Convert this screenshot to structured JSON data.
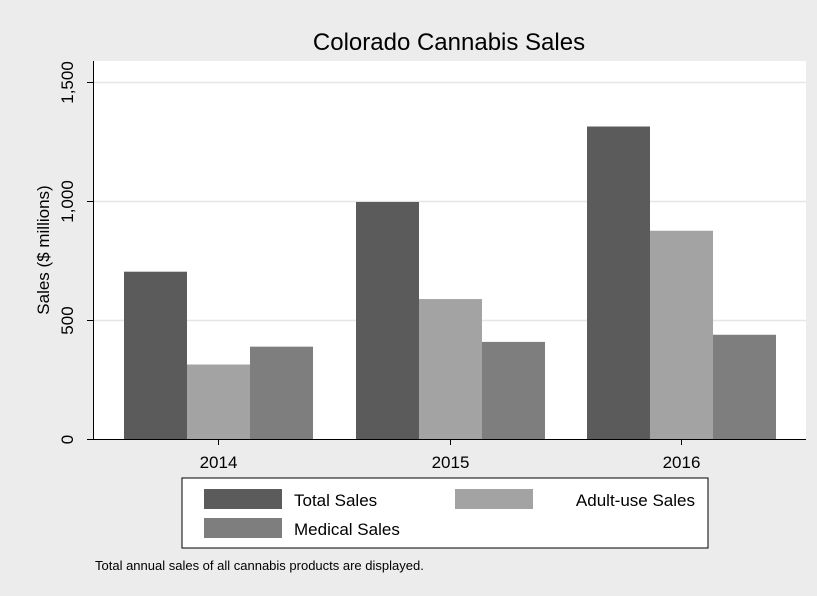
{
  "chart_data": {
    "type": "bar",
    "title": "Colorado Cannabis Sales",
    "xlabel": "",
    "ylabel": "Sales ($ millions)",
    "categories": [
      "2014",
      "2015",
      "2016"
    ],
    "series": [
      {
        "name": "Total Sales",
        "values": [
          703,
          996,
          1313
        ],
        "color": "#5b5b5b"
      },
      {
        "name": "Adult-use Sales",
        "values": [
          313,
          588,
          875
        ],
        "color": "#a3a3a3"
      },
      {
        "name": "Medical Sales",
        "values": [
          388,
          408,
          438
        ],
        "color": "#7e7e7e"
      }
    ],
    "ylim": [
      0,
      1500
    ],
    "yticks": [
      0,
      500,
      1000,
      1500
    ],
    "ytick_labels": [
      "0",
      "500",
      "1,000",
      "1,500"
    ],
    "grid": true,
    "legend_position": "bottom",
    "note": "Total annual sales of all cannabis products are displayed."
  },
  "colors": {
    "background": "#ececec",
    "plot_background": "#ffffff",
    "grid": "#e6e6e6"
  }
}
